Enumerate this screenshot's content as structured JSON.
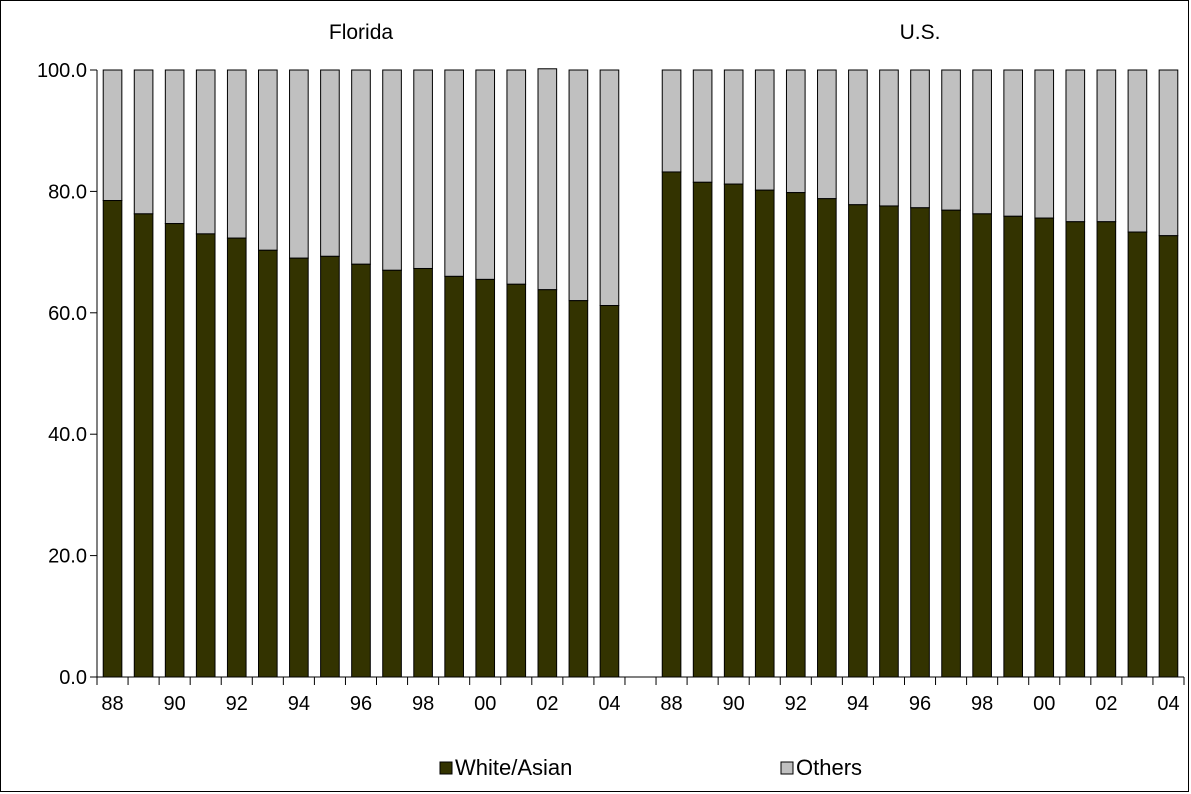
{
  "colors": {
    "white_asian": "#333300",
    "others": "#c0c0c0",
    "stroke": "#000000"
  },
  "chart_data": {
    "type": "bar",
    "stacked": true,
    "ylim": [
      0,
      100
    ],
    "yticks": [
      "0.0",
      "20.0",
      "40.0",
      "60.0",
      "80.0",
      "100.0"
    ],
    "ytick_values": [
      0,
      20,
      40,
      60,
      80,
      100
    ],
    "legend": {
      "placement": "bottom",
      "entries": [
        "White/Asian",
        "Others"
      ]
    },
    "series_names": [
      "White/Asian",
      "Others"
    ],
    "panels": [
      {
        "title": "Florida",
        "categories": [
          "88",
          "89",
          "90",
          "91",
          "92",
          "93",
          "94",
          "95",
          "96",
          "97",
          "98",
          "99",
          "00",
          "01",
          "02",
          "03",
          "04"
        ],
        "tick_labels": [
          "88",
          "",
          "90",
          "",
          "92",
          "",
          "94",
          "",
          "96",
          "",
          "98",
          "",
          "00",
          "",
          "02",
          "",
          "04"
        ],
        "white_asian": [
          78.5,
          76.3,
          74.7,
          73.0,
          72.3,
          70.3,
          69.0,
          69.3,
          68.0,
          67.0,
          67.3,
          66.0,
          65.5,
          64.7,
          63.8,
          62.0,
          61.2
        ],
        "others": [
          21.5,
          23.7,
          25.3,
          27.0,
          27.7,
          29.7,
          31.0,
          30.7,
          32.0,
          33.0,
          32.7,
          34.0,
          34.5,
          35.3,
          36.4,
          38.0,
          38.8
        ]
      },
      {
        "title": "U.S.",
        "categories": [
          "88",
          "89",
          "90",
          "91",
          "92",
          "93",
          "94",
          "95",
          "96",
          "97",
          "98",
          "99",
          "00",
          "01",
          "02",
          "03",
          "04"
        ],
        "tick_labels": [
          "88",
          "",
          "90",
          "",
          "92",
          "",
          "94",
          "",
          "96",
          "",
          "98",
          "",
          "00",
          "",
          "02",
          "",
          "04"
        ],
        "white_asian": [
          83.2,
          81.5,
          81.2,
          80.2,
          79.8,
          78.8,
          77.8,
          77.6,
          77.3,
          76.9,
          76.3,
          75.9,
          75.6,
          75.0,
          75.0,
          73.3,
          72.7
        ],
        "others": [
          16.8,
          18.5,
          18.8,
          19.8,
          20.2,
          21.2,
          22.2,
          22.4,
          22.7,
          23.1,
          23.7,
          24.1,
          24.4,
          25.0,
          25.0,
          26.7,
          27.3
        ]
      }
    ]
  }
}
